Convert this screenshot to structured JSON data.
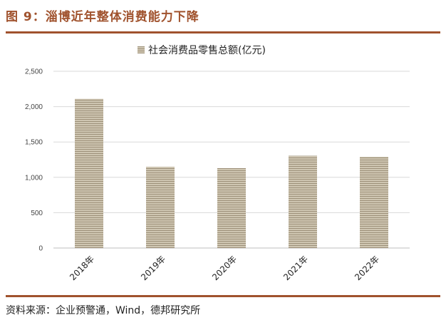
{
  "figure": {
    "title": "图 9：淄博近年整体消费能力下降",
    "source": "资料来源：企业预警通，Wind，德邦研究所"
  },
  "colors": {
    "accent": "#a0522d",
    "bar_fill": "#cfc6b2",
    "bar_stripe": "#9d9079",
    "grid": "#d9d9d9"
  },
  "chart_data": {
    "type": "bar",
    "title": "",
    "categories": [
      "2018年",
      "2019年",
      "2020年",
      "2021年",
      "2022年"
    ],
    "series": [
      {
        "name": "社会消费品零售总额(亿元)",
        "values": [
          2110,
          1150,
          1130,
          1305,
          1290
        ]
      }
    ],
    "ylim": [
      0,
      2500
    ],
    "yticks": [
      0,
      500,
      1000,
      1500,
      2000,
      2500
    ],
    "ytick_labels": [
      "0",
      "500",
      "1,000",
      "1,500",
      "2,000",
      "2,500"
    ],
    "grid": true,
    "legend": "top-center",
    "xlabel": "",
    "ylabel": ""
  }
}
